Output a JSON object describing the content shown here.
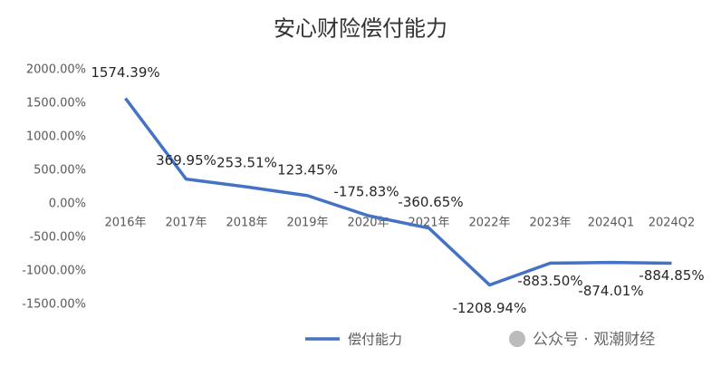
{
  "chart_data": {
    "type": "line",
    "title": "安心财险偿付能力",
    "categories": [
      "2016年",
      "2017年",
      "2018年",
      "2019年",
      "2020年",
      "2021年",
      "2022年",
      "2023年",
      "2024Q1",
      "2024Q2"
    ],
    "series": [
      {
        "name": "偿付能力",
        "color": "#4472c4",
        "values": [
          1574.39,
          369.95,
          253.51,
          123.45,
          -175.83,
          -360.65,
          -1208.94,
          -883.5,
          -874.01,
          -884.85
        ],
        "value_labels": [
          "1574.39%",
          "369.95%",
          "253.51%",
          "123.45%",
          "-175.83%",
          "-360.65%",
          "-1208.94%",
          "-883.50%",
          "-874.01%",
          "-884.85%"
        ]
      }
    ],
    "ylim": [
      -1500,
      2000
    ],
    "yticks": [
      {
        "value": -1500,
        "label": "-1500.00%"
      },
      {
        "value": -1000,
        "label": "-1000.00%"
      },
      {
        "value": -500,
        "label": "-500.00%"
      },
      {
        "value": 0,
        "label": "0.00%"
      },
      {
        "value": 500,
        "label": "500.00%"
      },
      {
        "value": 1000,
        "label": "1000.00%"
      },
      {
        "value": 1500,
        "label": "1500.00%"
      },
      {
        "value": 2000,
        "label": "2000.00%"
      }
    ],
    "grid": false,
    "legend": "bottom",
    "watermark": "公众号 · 观潮财经"
  }
}
